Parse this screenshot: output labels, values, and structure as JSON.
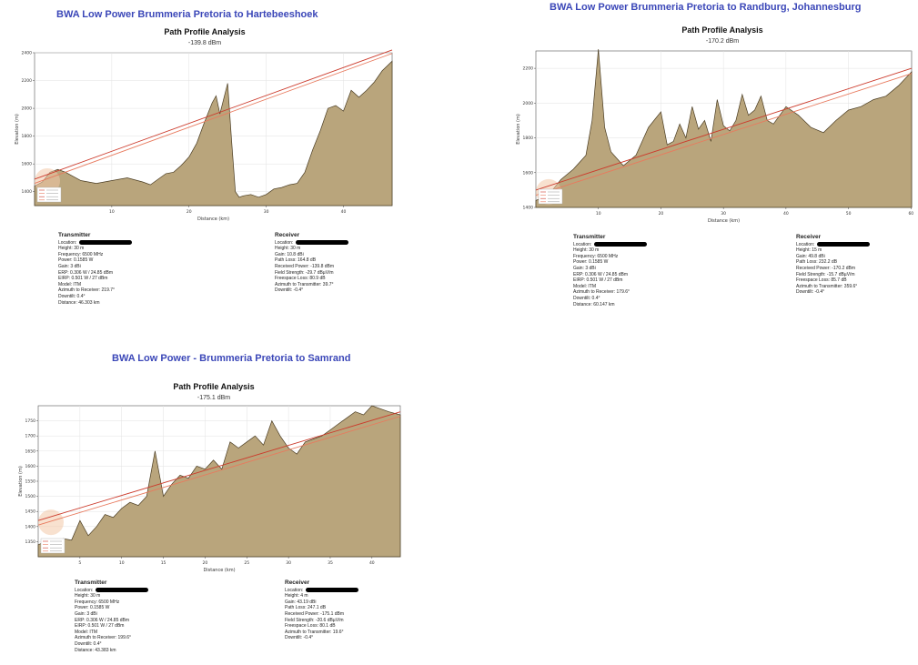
{
  "colors": {
    "terrain_fill": "#b9a57c",
    "terrain_stroke": "#4a3c22",
    "ray_a": "#cc3b2c",
    "ray_b": "#e87a5e",
    "title_blue": "#3b47b8"
  },
  "panels": [
    {
      "doc_title": "BWA Low Power Brummeria Pretoria to Hartebeeshoek",
      "chart_title": "Path Profile Analysis",
      "chart_subtitle": "-139.8 dBm",
      "xlabel": "Distance (km)",
      "ylabel": "Elevation (m)",
      "transmitter_header": "Transmitter",
      "receiver_header": "Receiver",
      "transmitter": [
        "Location:",
        "Height: 30 m",
        "Frequency: 6500 MHz",
        "Power: 0.1585 W",
        "Gain: 3 dBi",
        "ERP: 0.306 W / 24.85 dBm",
        "EIRP: 0.501 W / 27 dBm",
        "Model: ITM",
        "Azimuth to Receiver: 219.7°",
        "Downtilt: 0.4°",
        "Distance: 46.303 km"
      ],
      "receiver": [
        "Location:",
        "Height: 30 m",
        "Gain: 10.8 dBi",
        "Path Loss: 164.8 dB",
        "Received Power: -139.8 dBm",
        "Field Strength: -29.7 dBµV/m",
        "Freespace Loss: 80.9 dB",
        "Azimuth to Transmitter: 39.7°",
        "Downtilt: -0.4°"
      ]
    },
    {
      "doc_title": "BWA Low Power Brummeria Pretoria to Randburg, Johannesburg",
      "chart_title": "Path Profile Analysis",
      "chart_subtitle": "-170.2 dBm",
      "xlabel": "Distance (km)",
      "ylabel": "Elevation (m)",
      "transmitter_header": "Transmitter",
      "receiver_header": "Receiver",
      "transmitter": [
        "Location:",
        "Height: 30 m",
        "Frequency: 6500 MHz",
        "Power: 0.1585 W",
        "Gain: 3 dBi",
        "ERP: 0.306 W / 24.85 dBm",
        "EIRP: 0.501 W / 27 dBm",
        "Model: ITM",
        "Azimuth to Receiver: 179.6°",
        "Downtilt: 0.4°",
        "Distance: 60.147 km"
      ],
      "receiver": [
        "Location:",
        "Height: 15 m",
        "Gain: 49.8 dBi",
        "Path Loss: 232.2 dB",
        "Received Power: -170.2 dBm",
        "Field Strength: -15.7 dBµV/m",
        "Freespace Loss: 85.7 dB",
        "Azimuth to Transmitter: 359.6°",
        "Downtilt: -0.4°"
      ]
    },
    {
      "doc_title": "BWA Low Power - Brummeria Pretoria to Samrand",
      "chart_title": "Path Profile Analysis",
      "chart_subtitle": "-175.1 dBm",
      "xlabel": "Distance (km)",
      "ylabel": "Elevation (m)",
      "transmitter_header": "Transmitter",
      "receiver_header": "Receiver",
      "transmitter": [
        "Location:",
        "Height: 30 m",
        "Frequency: 6500 MHz",
        "Power: 0.1585 W",
        "Gain: 3 dBi",
        "ERP: 0.306 W / 24.85 dBm",
        "EIRP: 0.501 W / 27 dBm",
        "Model: ITM",
        "Azimuth to Receiver: 199.6°",
        "Downtilt: 0.4°",
        "Distance: 43.383 km"
      ],
      "receiver": [
        "Location:",
        "Height: 4 m",
        "Gain: 43.19 dBi",
        "Path Loss: 247.1 dB",
        "Received Power: -175.1 dBm",
        "Field Strength: -20.6 dBµV/m",
        "Freespace Loss: 80.1 dB",
        "Azimuth to Transmitter: 19.6°",
        "Downtilt: -0.4°"
      ]
    }
  ],
  "chart_data": [
    {
      "type": "area",
      "title": "Path Profile Analysis",
      "subtitle": "-139.8 dBm",
      "xlabel": "Distance (km)",
      "ylabel": "Elevation (m)",
      "xlim": [
        0,
        46.3
      ],
      "ylim": [
        1300,
        2400
      ],
      "xticks": [
        10,
        20,
        30,
        40
      ],
      "yticks": [
        1400,
        1600,
        1800,
        2000,
        2200,
        2400
      ],
      "grid": true,
      "legend_position": "bottom-left",
      "terrain": {
        "x": [
          0,
          1,
          2,
          3,
          4,
          5,
          6,
          8,
          10,
          12,
          14,
          15,
          16,
          17,
          18,
          19,
          20,
          21,
          22,
          23,
          23.5,
          24,
          25,
          25.5,
          26,
          26.5,
          27,
          28,
          29,
          30,
          31,
          32,
          33,
          34,
          35,
          36,
          37,
          38,
          39,
          40,
          41,
          42,
          43,
          44,
          45,
          46.3
        ],
        "y": [
          1440,
          1470,
          1540,
          1560,
          1540,
          1510,
          1480,
          1460,
          1480,
          1500,
          1470,
          1450,
          1490,
          1530,
          1540,
          1590,
          1650,
          1750,
          1900,
          2040,
          2090,
          1960,
          2180,
          1780,
          1400,
          1360,
          1370,
          1380,
          1360,
          1380,
          1420,
          1430,
          1450,
          1460,
          1540,
          1700,
          1840,
          2000,
          2020,
          1980,
          2130,
          2080,
          2130,
          2190,
          2270,
          2340
        ]
      },
      "ray_lines": [
        {
          "x": [
            0,
            46.3
          ],
          "y": [
            1490,
            2420
          ]
        },
        {
          "x": [
            0,
            46.3
          ],
          "y": [
            1460,
            2395
          ]
        }
      ]
    },
    {
      "type": "area",
      "title": "Path Profile Analysis",
      "subtitle": "-170.2 dBm",
      "xlabel": "Distance (km)",
      "ylabel": "Elevation (m)",
      "xlim": [
        0,
        60.1
      ],
      "ylim": [
        1400,
        2300
      ],
      "xticks": [
        10,
        20,
        30,
        40,
        50,
        60
      ],
      "yticks": [
        1400,
        1600,
        1800,
        2000,
        2200
      ],
      "grid": true,
      "legend_position": "bottom-left",
      "terrain": {
        "x": [
          0,
          2,
          4,
          6,
          8,
          9,
          10,
          11,
          12,
          13,
          14,
          16,
          18,
          20,
          21,
          22,
          23,
          24,
          25,
          26,
          27,
          28,
          29,
          30,
          31,
          32,
          33,
          34,
          35,
          36,
          37,
          38,
          40,
          42,
          44,
          46,
          48,
          50,
          52,
          54,
          56,
          58,
          60.1
        ],
        "y": [
          1440,
          1470,
          1560,
          1620,
          1700,
          1900,
          2310,
          1860,
          1720,
          1680,
          1640,
          1700,
          1860,
          1950,
          1760,
          1780,
          1880,
          1800,
          1980,
          1850,
          1900,
          1780,
          2020,
          1870,
          1840,
          1900,
          2050,
          1930,
          1960,
          2040,
          1900,
          1880,
          1980,
          1930,
          1860,
          1830,
          1900,
          1960,
          1980,
          2020,
          2040,
          2100,
          2180
        ]
      },
      "ray_lines": [
        {
          "x": [
            0,
            60.1
          ],
          "y": [
            1500,
            2200
          ]
        },
        {
          "x": [
            0,
            60.1
          ],
          "y": [
            1470,
            2170
          ]
        }
      ]
    },
    {
      "type": "area",
      "title": "Path Profile Analysis",
      "subtitle": "-175.1 dBm",
      "xlabel": "Distance (km)",
      "ylabel": "Elevation (m)",
      "xlim": [
        0,
        43.4
      ],
      "ylim": [
        1300,
        1800
      ],
      "xticks": [
        5,
        10,
        15,
        20,
        25,
        30,
        35,
        40
      ],
      "yticks": [
        1350,
        1400,
        1450,
        1500,
        1550,
        1600,
        1650,
        1700,
        1750
      ],
      "grid": true,
      "legend_position": "bottom-left",
      "terrain": {
        "x": [
          0,
          1,
          2,
          3,
          4,
          5,
          6,
          7,
          8,
          9,
          10,
          11,
          12,
          13,
          14,
          15,
          16,
          17,
          18,
          19,
          20,
          21,
          22,
          23,
          24,
          25,
          26,
          27,
          28,
          29,
          30,
          31,
          32,
          33,
          34,
          35,
          36,
          37,
          38,
          39,
          40,
          41,
          42,
          43.4
        ],
        "y": [
          1340,
          1350,
          1345,
          1360,
          1355,
          1420,
          1370,
          1400,
          1440,
          1430,
          1460,
          1480,
          1470,
          1500,
          1650,
          1500,
          1540,
          1570,
          1560,
          1600,
          1590,
          1620,
          1590,
          1680,
          1660,
          1680,
          1700,
          1670,
          1750,
          1700,
          1660,
          1640,
          1680,
          1690,
          1700,
          1720,
          1740,
          1760,
          1780,
          1770,
          1800,
          1790,
          1780,
          1770
        ]
      },
      "ray_lines": [
        {
          "x": [
            0,
            43.4
          ],
          "y": [
            1420,
            1780
          ]
        },
        {
          "x": [
            0,
            43.4
          ],
          "y": [
            1405,
            1765
          ]
        }
      ]
    }
  ]
}
